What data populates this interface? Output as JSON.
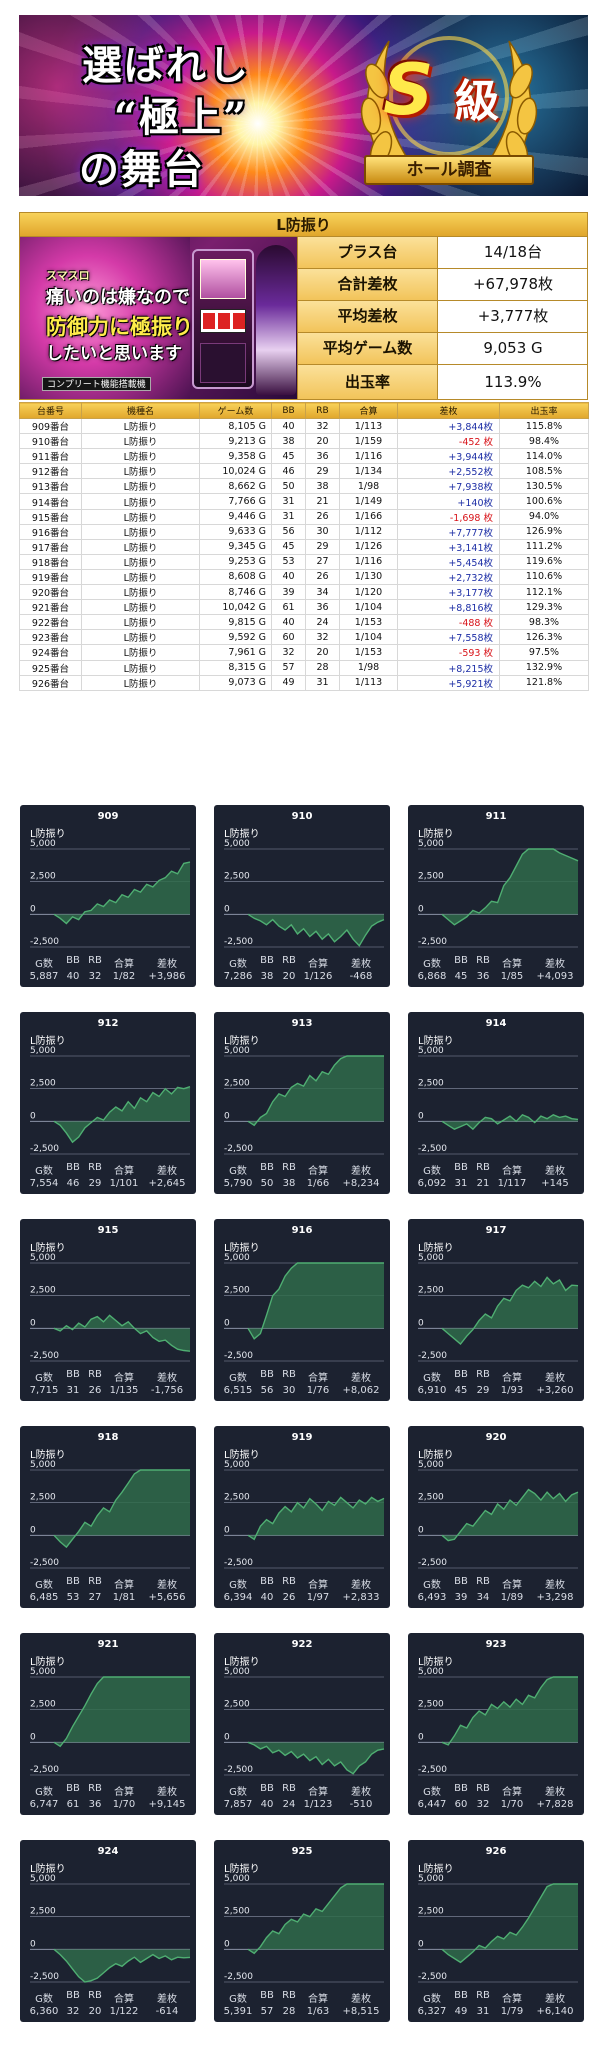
{
  "banner": {
    "line1": "選ばれし",
    "line2": "“極上”",
    "line3": "の舞台",
    "grade_letter": "S",
    "grade_word": "級",
    "ribbon": "ホール調査"
  },
  "summary": {
    "machine": "L防振り",
    "image_text": {
      "line1": "スマスロ",
      "line2": "痛いのは嫌なので",
      "line3": "防御力に極振り",
      "line4": "したいと思います",
      "footer": "コンプリート機能搭載機"
    },
    "stats": [
      {
        "label": "プラス台",
        "value": "14/18台"
      },
      {
        "label": "合計差枚",
        "value": "+67,978枚"
      },
      {
        "label": "平均差枚",
        "value": "+3,777枚"
      },
      {
        "label": "平均ゲーム数",
        "value": "9,053 G"
      },
      {
        "label": "出玉率",
        "value": "113.9%"
      }
    ]
  },
  "table": {
    "headers": [
      "台番号",
      "機種名",
      "ゲーム数",
      "BB",
      "RB",
      "合算",
      "差枚",
      "出玉率"
    ],
    "rows": [
      {
        "no": "909番台",
        "name": "L防振り",
        "games": "8,105 G",
        "bb": "40",
        "rb": "32",
        "total": "1/113",
        "diff": "+3,844枚",
        "rate": "115.8%",
        "sign": "pos"
      },
      {
        "no": "910番台",
        "name": "L防振り",
        "games": "9,213 G",
        "bb": "38",
        "rb": "20",
        "total": "1/159",
        "diff": "-452 枚",
        "rate": "98.4%",
        "sign": "neg"
      },
      {
        "no": "911番台",
        "name": "L防振り",
        "games": "9,358 G",
        "bb": "45",
        "rb": "36",
        "total": "1/116",
        "diff": "+3,944枚",
        "rate": "114.0%",
        "sign": "pos"
      },
      {
        "no": "912番台",
        "name": "L防振り",
        "games": "10,024 G",
        "bb": "46",
        "rb": "29",
        "total": "1/134",
        "diff": "+2,552枚",
        "rate": "108.5%",
        "sign": "pos"
      },
      {
        "no": "913番台",
        "name": "L防振り",
        "games": "8,662 G",
        "bb": "50",
        "rb": "38",
        "total": "1/98",
        "diff": "+7,938枚",
        "rate": "130.5%",
        "sign": "pos"
      },
      {
        "no": "914番台",
        "name": "L防振り",
        "games": "7,766 G",
        "bb": "31",
        "rb": "21",
        "total": "1/149",
        "diff": "+140枚",
        "rate": "100.6%",
        "sign": "pos"
      },
      {
        "no": "915番台",
        "name": "L防振り",
        "games": "9,446 G",
        "bb": "31",
        "rb": "26",
        "total": "1/166",
        "diff": "-1,698 枚",
        "rate": "94.0%",
        "sign": "neg"
      },
      {
        "no": "916番台",
        "name": "L防振り",
        "games": "9,633 G",
        "bb": "56",
        "rb": "30",
        "total": "1/112",
        "diff": "+7,777枚",
        "rate": "126.9%",
        "sign": "pos"
      },
      {
        "no": "917番台",
        "name": "L防振り",
        "games": "9,345 G",
        "bb": "45",
        "rb": "29",
        "total": "1/126",
        "diff": "+3,141枚",
        "rate": "111.2%",
        "sign": "pos"
      },
      {
        "no": "918番台",
        "name": "L防振り",
        "games": "9,253 G",
        "bb": "53",
        "rb": "27",
        "total": "1/116",
        "diff": "+5,454枚",
        "rate": "119.6%",
        "sign": "pos"
      },
      {
        "no": "919番台",
        "name": "L防振り",
        "games": "8,608 G",
        "bb": "40",
        "rb": "26",
        "total": "1/130",
        "diff": "+2,732枚",
        "rate": "110.6%",
        "sign": "pos"
      },
      {
        "no": "920番台",
        "name": "L防振り",
        "games": "8,746 G",
        "bb": "39",
        "rb": "34",
        "total": "1/120",
        "diff": "+3,177枚",
        "rate": "112.1%",
        "sign": "pos"
      },
      {
        "no": "921番台",
        "name": "L防振り",
        "games": "10,042 G",
        "bb": "61",
        "rb": "36",
        "total": "1/104",
        "diff": "+8,816枚",
        "rate": "129.3%",
        "sign": "pos"
      },
      {
        "no": "922番台",
        "name": "L防振り",
        "games": "9,815 G",
        "bb": "40",
        "rb": "24",
        "total": "1/153",
        "diff": "-488 枚",
        "rate": "98.3%",
        "sign": "neg"
      },
      {
        "no": "923番台",
        "name": "L防振り",
        "games": "9,592 G",
        "bb": "60",
        "rb": "32",
        "total": "1/104",
        "diff": "+7,558枚",
        "rate": "126.3%",
        "sign": "pos"
      },
      {
        "no": "924番台",
        "name": "L防振り",
        "games": "7,961 G",
        "bb": "32",
        "rb": "20",
        "total": "1/153",
        "diff": "-593 枚",
        "rate": "97.5%",
        "sign": "neg"
      },
      {
        "no": "925番台",
        "name": "L防振り",
        "games": "8,315 G",
        "bb": "57",
        "rb": "28",
        "total": "1/98",
        "diff": "+8,215枚",
        "rate": "132.9%",
        "sign": "pos"
      },
      {
        "no": "926番台",
        "name": "L防振り",
        "games": "9,073 G",
        "bb": "49",
        "rb": "31",
        "total": "1/113",
        "diff": "+5,921枚",
        "rate": "121.8%",
        "sign": "pos"
      }
    ]
  },
  "graph_common": {
    "subtitle": "L防振り",
    "y_ticks": [
      "5,000",
      "2,500",
      "0",
      "-2,500"
    ],
    "footer_headers": [
      "G数",
      "BB",
      "RB",
      "合算",
      "差枚"
    ],
    "colors": {
      "card_bg": "#1c2230",
      "line": "#4fae72",
      "fill": "#2f6a4a",
      "grid": "#8a93a6"
    }
  },
  "chart_data": [
    {
      "type": "area",
      "title": "909",
      "ylim": [
        -2500,
        5000
      ],
      "y": [
        0,
        -300,
        -700,
        -200,
        -400,
        200,
        300,
        800,
        600,
        1100,
        900,
        1500,
        1300,
        1900,
        1700,
        2300,
        2100,
        2600,
        2800,
        3300,
        3100,
        3900,
        4000
      ],
      "stats": {
        "games": "5,887",
        "bb": "40",
        "rb": "32",
        "total": "1/82",
        "diff": "+3,986"
      }
    },
    {
      "type": "area",
      "title": "910",
      "ylim": [
        -2500,
        5000
      ],
      "y": [
        0,
        -300,
        -500,
        -800,
        -400,
        -900,
        -1200,
        -800,
        -1500,
        -1100,
        -1700,
        -1300,
        -1900,
        -1500,
        -2100,
        -1700,
        -1200,
        -1900,
        -2400,
        -1600,
        -900,
        -600,
        -400
      ],
      "stats": {
        "games": "7,286",
        "bb": "38",
        "rb": "20",
        "total": "1/126",
        "diff": "-468"
      }
    },
    {
      "type": "area",
      "title": "911",
      "ylim": [
        -2500,
        5000
      ],
      "y": [
        0,
        -400,
        -800,
        -500,
        -200,
        300,
        100,
        500,
        1000,
        900,
        2200,
        2800,
        3700,
        4600,
        5000,
        5000,
        5000,
        5000,
        5000,
        4700,
        4500,
        4300,
        4100
      ],
      "stats": {
        "games": "6,868",
        "bb": "45",
        "rb": "36",
        "total": "1/85",
        "diff": "+4,093"
      }
    },
    {
      "type": "area",
      "title": "912",
      "ylim": [
        -2500,
        5000
      ],
      "y": [
        0,
        -300,
        -900,
        -1600,
        -1200,
        -500,
        -100,
        300,
        100,
        700,
        1100,
        800,
        1500,
        1000,
        1800,
        1500,
        2200,
        1900,
        2500,
        2100,
        2600,
        2500,
        2650
      ],
      "stats": {
        "games": "7,554",
        "bb": "46",
        "rb": "29",
        "total": "1/101",
        "diff": "+2,645"
      }
    },
    {
      "type": "area",
      "title": "913",
      "ylim": [
        -2500,
        5000
      ],
      "y": [
        0,
        -300,
        300,
        600,
        1500,
        2100,
        1900,
        2600,
        2900,
        2700,
        3500,
        3100,
        3800,
        3600,
        4300,
        4800,
        5000,
        5000,
        5000,
        5000,
        5000,
        5000,
        5000
      ],
      "stats": {
        "games": "5,790",
        "bb": "50",
        "rb": "38",
        "total": "1/66",
        "diff": "+8,234"
      }
    },
    {
      "type": "area",
      "title": "914",
      "ylim": [
        -2500,
        5000
      ],
      "y": [
        0,
        -300,
        -600,
        -400,
        -200,
        -600,
        -100,
        300,
        200,
        -200,
        100,
        400,
        0,
        500,
        300,
        -100,
        400,
        200,
        500,
        300,
        400,
        200,
        150
      ],
      "stats": {
        "games": "6,092",
        "bb": "31",
        "rb": "21",
        "total": "1/117",
        "diff": "+145"
      }
    },
    {
      "type": "area",
      "title": "915",
      "ylim": [
        -2500,
        5000
      ],
      "y": [
        0,
        -200,
        200,
        -100,
        400,
        100,
        700,
        900,
        500,
        1000,
        600,
        200,
        500,
        0,
        -400,
        -200,
        -700,
        -1000,
        -900,
        -1300,
        -1600,
        -1700,
        -1750
      ],
      "stats": {
        "games": "7,715",
        "bb": "31",
        "rb": "26",
        "total": "1/135",
        "diff": "-1,756"
      }
    },
    {
      "type": "area",
      "title": "916",
      "ylim": [
        -2500,
        5000
      ],
      "y": [
        0,
        -800,
        -400,
        1000,
        2500,
        3000,
        4000,
        4600,
        5000,
        5000,
        5000,
        5000,
        5000,
        5000,
        5000,
        5000,
        5000,
        5000,
        5000,
        5000,
        5000,
        5000,
        5000
      ],
      "stats": {
        "games": "6,515",
        "bb": "56",
        "rb": "30",
        "total": "1/76",
        "diff": "+8,062"
      }
    },
    {
      "type": "area",
      "title": "917",
      "ylim": [
        -2500,
        5000
      ],
      "y": [
        0,
        -400,
        -800,
        -1200,
        -600,
        -100,
        600,
        1100,
        800,
        1700,
        2300,
        2100,
        2900,
        3300,
        3100,
        3600,
        3200,
        3900,
        3400,
        3700,
        2900,
        3300,
        3260
      ],
      "stats": {
        "games": "6,910",
        "bb": "45",
        "rb": "29",
        "total": "1/93",
        "diff": "+3,260"
      }
    },
    {
      "type": "area",
      "title": "918",
      "ylim": [
        -2500,
        5000
      ],
      "y": [
        0,
        -500,
        -900,
        -300,
        300,
        1000,
        700,
        1500,
        2100,
        1800,
        2700,
        3300,
        4000,
        4700,
        5000,
        5000,
        5000,
        5000,
        5000,
        5000,
        5000,
        5000,
        5000
      ],
      "stats": {
        "games": "6,485",
        "bb": "53",
        "rb": "27",
        "total": "1/81",
        "diff": "+5,656"
      }
    },
    {
      "type": "area",
      "title": "919",
      "ylim": [
        -2500,
        5000
      ],
      "y": [
        0,
        -300,
        700,
        1200,
        900,
        1700,
        2200,
        1800,
        2500,
        2100,
        2800,
        2400,
        1900,
        2600,
        2300,
        2900,
        2500,
        2100,
        2700,
        2400,
        2900,
        2600,
        2830
      ],
      "stats": {
        "games": "6,394",
        "bb": "40",
        "rb": "26",
        "total": "1/97",
        "diff": "+2,833"
      }
    },
    {
      "type": "area",
      "title": "920",
      "ylim": [
        -2500,
        5000
      ],
      "y": [
        0,
        -400,
        -300,
        300,
        900,
        700,
        1300,
        1900,
        1600,
        2400,
        2000,
        2700,
        2300,
        2900,
        3500,
        3200,
        2700,
        3300,
        2800,
        3200,
        2600,
        3100,
        3300
      ],
      "stats": {
        "games": "6,493",
        "bb": "39",
        "rb": "34",
        "total": "1/89",
        "diff": "+3,298"
      }
    },
    {
      "type": "area",
      "title": "921",
      "ylim": [
        -2500,
        5000
      ],
      "y": [
        0,
        -300,
        300,
        1200,
        2000,
        2800,
        3700,
        4500,
        5000,
        5000,
        5000,
        5000,
        5000,
        5000,
        5000,
        5000,
        5000,
        5000,
        5000,
        5000,
        5000,
        5000,
        5000
      ],
      "stats": {
        "games": "6,747",
        "bb": "61",
        "rb": "36",
        "total": "1/70",
        "diff": "+9,145"
      }
    },
    {
      "type": "area",
      "title": "922",
      "ylim": [
        -2500,
        5000
      ],
      "y": [
        0,
        -200,
        -500,
        -300,
        -800,
        -600,
        -1000,
        -700,
        -1200,
        -900,
        -1400,
        -1100,
        -1700,
        -1300,
        -1800,
        -1500,
        -2100,
        -2400,
        -1800,
        -1500,
        -900,
        -600,
        -510
      ],
      "stats": {
        "games": "7,857",
        "bb": "40",
        "rb": "24",
        "total": "1/123",
        "diff": "-510"
      }
    },
    {
      "type": "area",
      "title": "923",
      "ylim": [
        -2500,
        5000
      ],
      "y": [
        0,
        -200,
        500,
        1300,
        1100,
        1900,
        2400,
        2100,
        2900,
        2600,
        3100,
        2700,
        3300,
        2900,
        3600,
        3400,
        4200,
        4800,
        5000,
        5000,
        5000,
        5000,
        5000
      ],
      "stats": {
        "games": "6,447",
        "bb": "60",
        "rb": "32",
        "total": "1/70",
        "diff": "+7,828"
      }
    },
    {
      "type": "area",
      "title": "924",
      "ylim": [
        -2500,
        5000
      ],
      "y": [
        0,
        -400,
        -900,
        -1500,
        -2100,
        -2500,
        -2400,
        -2200,
        -1800,
        -1400,
        -1100,
        -1300,
        -900,
        -600,
        -1000,
        -700,
        -400,
        -700,
        -500,
        -800,
        -600,
        -650,
        -614
      ],
      "stats": {
        "games": "6,360",
        "bb": "32",
        "rb": "20",
        "total": "1/122",
        "diff": "-614"
      }
    },
    {
      "type": "area",
      "title": "925",
      "ylim": [
        -2500,
        5000
      ],
      "y": [
        0,
        -300,
        200,
        900,
        1400,
        1200,
        1900,
        2300,
        2100,
        2700,
        2500,
        3100,
        2900,
        3500,
        4100,
        4700,
        5000,
        5000,
        5000,
        5000,
        5000,
        5000,
        5000
      ],
      "stats": {
        "games": "5,391",
        "bb": "57",
        "rb": "28",
        "total": "1/63",
        "diff": "+8,515"
      }
    },
    {
      "type": "area",
      "title": "926",
      "ylim": [
        -2500,
        5000
      ],
      "y": [
        0,
        -400,
        -700,
        -1000,
        -600,
        -200,
        300,
        100,
        600,
        1000,
        800,
        1300,
        1100,
        1700,
        2400,
        3200,
        4000,
        4800,
        5000,
        5000,
        5000,
        5000,
        5000
      ],
      "stats": {
        "games": "6,327",
        "bb": "49",
        "rb": "31",
        "total": "1/79",
        "diff": "+6,140"
      }
    }
  ]
}
